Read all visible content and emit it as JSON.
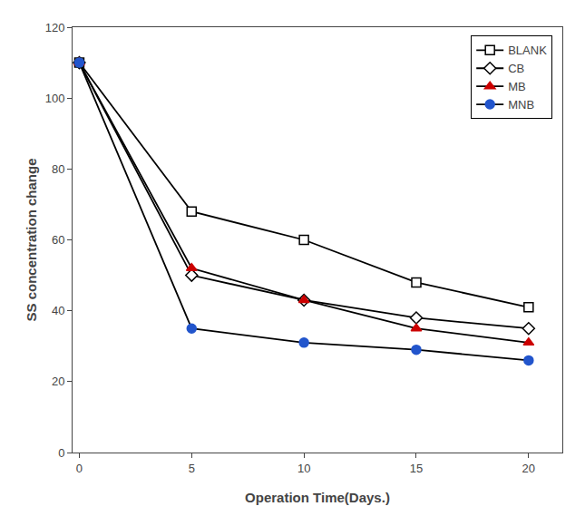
{
  "chart_data": {
    "type": "line",
    "xlabel": "Operation Time(Days.)",
    "ylabel": "SS concentration change",
    "x": [
      0,
      5,
      10,
      15,
      20
    ],
    "series": [
      {
        "name": "BLANK",
        "color": "#000000",
        "marker": "square-open",
        "colors": [
          "#000000",
          "#000000",
          "#000000",
          "#000000",
          "#000000"
        ],
        "values": [
          110,
          68,
          60,
          48,
          41
        ]
      },
      {
        "name": "CB",
        "color": "#000000",
        "marker": "diamond-open",
        "colors": [
          "#000000",
          "#000000",
          "#000000",
          "#000000",
          "#000000"
        ],
        "values": [
          110,
          50,
          43,
          38,
          35
        ]
      },
      {
        "name": "MB",
        "color": "#000000",
        "marker": "triangle-up",
        "colors": [
          "#cc0000",
          "#cc0000",
          "#cc0000",
          "#cc0000",
          "#cc0000"
        ],
        "values": [
          110,
          52,
          43,
          35,
          31
        ]
      },
      {
        "name": "MNB",
        "color": "#000000",
        "marker": "circle",
        "colors": [
          "#2255cc",
          "#2255cc",
          "#2255cc",
          "#2255cc",
          "#2255cc"
        ],
        "values": [
          110,
          35,
          31,
          29,
          26
        ]
      }
    ],
    "xlim": [
      -0.3,
      21.5
    ],
    "xticks": [
      0,
      5,
      10,
      15,
      20
    ],
    "ylim": [
      0,
      120
    ],
    "yticks": [
      0,
      20,
      40,
      60,
      80,
      100,
      120
    ],
    "grid": false,
    "legend": "upper right"
  }
}
